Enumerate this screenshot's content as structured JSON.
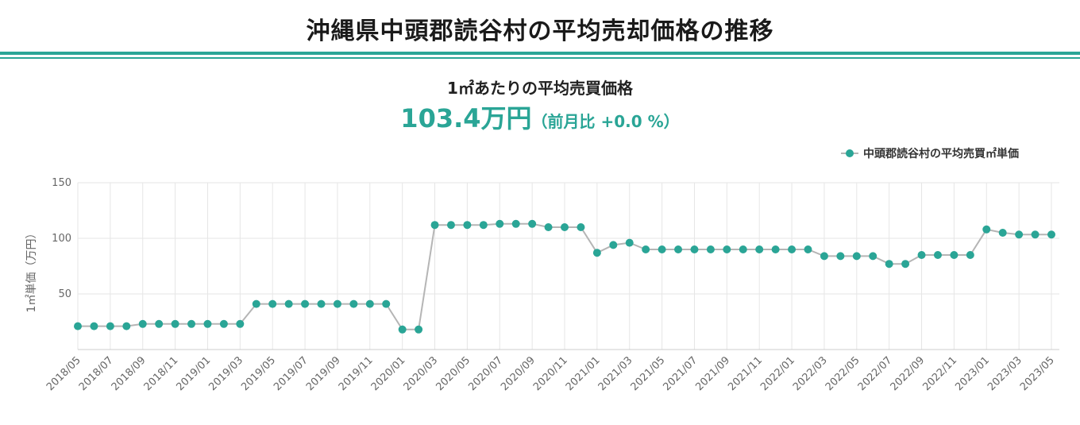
{
  "page": {
    "title": "沖縄県中頭郡読谷村の平均売却価格の推移",
    "subtitle": "1㎡あたりの平均売買価格",
    "price_value": "103.4万円",
    "price_change": "（前月比 +0.0 %）"
  },
  "colors": {
    "accent": "#2aa596",
    "line": "#b5b5b5",
    "grid": "#e6e6e6"
  },
  "chart_data": {
    "type": "line",
    "ylabel": "1㎡単価（万円）",
    "xlabel": "",
    "ylim": [
      0,
      150
    ],
    "yticks": [
      50,
      100,
      150
    ],
    "legend": {
      "position": "top-right"
    },
    "grid": true,
    "tick_labels": [
      "2018/05",
      "2018/07",
      "2018/09",
      "2018/11",
      "2019/01",
      "2019/03",
      "2019/05",
      "2019/07",
      "2019/09",
      "2019/11",
      "2020/01",
      "2020/03",
      "2020/05",
      "2020/07",
      "2020/09",
      "2020/11",
      "2021/01",
      "2021/03",
      "2021/05",
      "2021/07",
      "2021/09",
      "2021/11",
      "2022/01",
      "2022/03",
      "2022/05",
      "2022/07",
      "2022/09",
      "2022/11",
      "2023/01",
      "2023/03",
      "2023/05"
    ],
    "x": [
      "2018/05",
      "2018/06",
      "2018/07",
      "2018/08",
      "2018/09",
      "2018/10",
      "2018/11",
      "2018/12",
      "2019/01",
      "2019/02",
      "2019/03",
      "2019/04",
      "2019/05",
      "2019/06",
      "2019/07",
      "2019/08",
      "2019/09",
      "2019/10",
      "2019/11",
      "2019/12",
      "2020/01",
      "2020/02",
      "2020/03",
      "2020/04",
      "2020/05",
      "2020/06",
      "2020/07",
      "2020/08",
      "2020/09",
      "2020/10",
      "2020/11",
      "2020/12",
      "2021/01",
      "2021/02",
      "2021/03",
      "2021/04",
      "2021/05",
      "2021/06",
      "2021/07",
      "2021/08",
      "2021/09",
      "2021/10",
      "2021/11",
      "2021/12",
      "2022/01",
      "2022/02",
      "2022/03",
      "2022/04",
      "2022/05",
      "2022/06",
      "2022/07",
      "2022/08",
      "2022/09",
      "2022/10",
      "2022/11",
      "2022/12",
      "2023/01",
      "2023/02",
      "2023/03",
      "2023/04",
      "2023/05"
    ],
    "series": [
      {
        "name": "中頭郡読谷村の平均売買㎡単価",
        "values": [
          21,
          21,
          21,
          21,
          23,
          23,
          23,
          23,
          23,
          23,
          23,
          41,
          41,
          41,
          41,
          41,
          41,
          41,
          41,
          41,
          18,
          18,
          112,
          112,
          112,
          112,
          113,
          113,
          113,
          110,
          110,
          110,
          87,
          94,
          96,
          90,
          90,
          90,
          90,
          90,
          90,
          90,
          90,
          90,
          90,
          90,
          84,
          84,
          84,
          84,
          77,
          77,
          85,
          85,
          85,
          85,
          108,
          105,
          103.4,
          103.4,
          103.4
        ]
      }
    ]
  }
}
